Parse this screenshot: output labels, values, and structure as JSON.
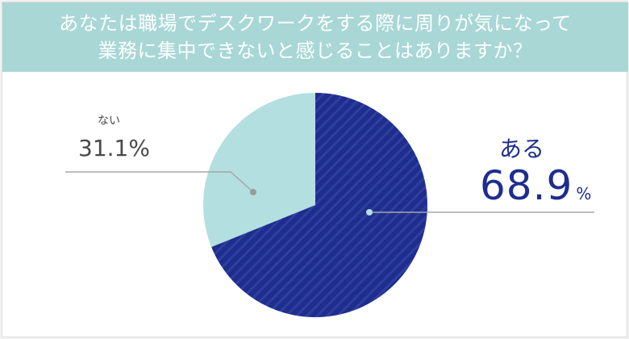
{
  "title": "あなたは職場でデスクワークをする際に周りが気になって\n業務に集中できないと感じることはありますか？",
  "chart_data": {
    "type": "pie",
    "slices": [
      {
        "label": "ある",
        "value": 68.9,
        "display": "68.9",
        "unit": "%"
      },
      {
        "label": "ない",
        "value": 31.1,
        "display": "31.1%"
      }
    ],
    "colors": {
      "ある": "#1e2d8e",
      "ない": "#b3dfe0"
    },
    "start": "12 o'clock",
    "direction": "clockwise",
    "legend": "none"
  }
}
